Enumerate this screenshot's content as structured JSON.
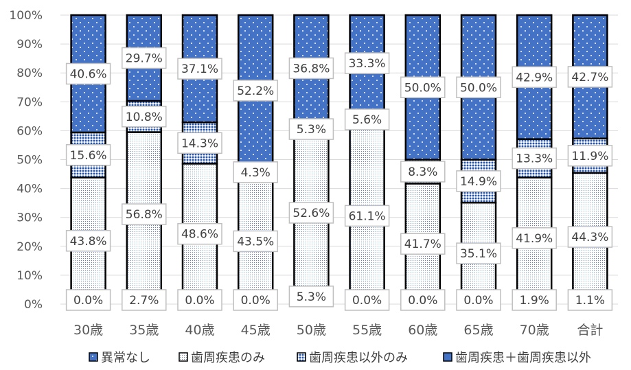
{
  "chart_data": {
    "type": "bar",
    "stacked": true,
    "normalized": true,
    "categories": [
      "30歳",
      "35歳",
      "40歳",
      "45歳",
      "50歳",
      "55歳",
      "60歳",
      "65歳",
      "70歳",
      "合計"
    ],
    "y_ticks": [
      "0%",
      "10%",
      "20%",
      "30%",
      "40%",
      "50%",
      "60%",
      "70%",
      "80%",
      "90%",
      "100%"
    ],
    "ylim": [
      0,
      100
    ],
    "grid": true,
    "legend_position": "bottom",
    "series": [
      {
        "name": "異常なし",
        "color": "#4472c4",
        "pattern": "white-dots",
        "values": [
          40.6,
          29.7,
          37.1,
          52.2,
          36.8,
          33.3,
          50.0,
          50.0,
          42.9,
          42.7
        ],
        "labels": [
          "40.6%",
          "29.7%",
          "37.1%",
          "52.2%",
          "36.8%",
          "33.3%",
          "50.0%",
          "50.0%",
          "42.9%",
          "42.7%"
        ]
      },
      {
        "name": "歯周疾患のみ",
        "color": "#ffffff",
        "pattern": "fine-blue-dots",
        "values": [
          43.8,
          56.8,
          48.6,
          43.5,
          52.6,
          61.1,
          41.7,
          35.1,
          41.9,
          44.3
        ],
        "labels": [
          "43.8%",
          "56.8%",
          "48.6%",
          "43.5%",
          "52.6%",
          "61.1%",
          "41.7%",
          "35.1%",
          "41.9%",
          "44.3%"
        ]
      },
      {
        "name": "歯周疾患以外のみ",
        "color": "#8faadc",
        "pattern": "blue-checker",
        "values": [
          15.6,
          10.8,
          14.3,
          4.3,
          5.3,
          5.6,
          8.3,
          14.9,
          13.3,
          11.9
        ],
        "labels": [
          "15.6%",
          "10.8%",
          "14.3%",
          "4.3%",
          "5.3%",
          "5.6%",
          "8.3%",
          "14.9%",
          "13.3%",
          "11.9%"
        ]
      },
      {
        "name": "歯周疾患＋歯周疾患以外",
        "color": "#4472c4",
        "pattern": "solid",
        "values": [
          0.0,
          2.7,
          0.0,
          0.0,
          5.3,
          0.0,
          0.0,
          0.0,
          1.9,
          1.1
        ],
        "labels": [
          "0.0%",
          "2.7%",
          "0.0%",
          "0.0%",
          "5.3%",
          "0.0%",
          "0.0%",
          "0.0%",
          "1.9%",
          "1.1%"
        ]
      }
    ]
  }
}
